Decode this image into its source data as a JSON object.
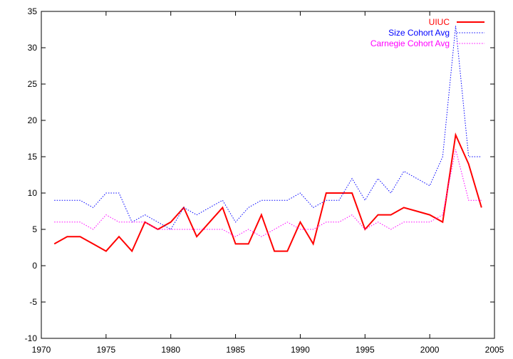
{
  "chart_data": {
    "type": "line",
    "title": "",
    "xlabel": "",
    "ylabel": "",
    "xlim": [
      1970,
      2005
    ],
    "ylim": [
      -10,
      35
    ],
    "x_ticks": [
      1970,
      1975,
      1980,
      1985,
      1990,
      1995,
      2000,
      2005
    ],
    "y_ticks": [
      -10,
      -5,
      0,
      5,
      10,
      15,
      20,
      25,
      30,
      35
    ],
    "grid": false,
    "legend_position": "top-right",
    "series": [
      {
        "name": "UIUC",
        "color": "#ff0000",
        "style": "solid",
        "x": [
          1971,
          1972,
          1973,
          1974,
          1975,
          1976,
          1977,
          1978,
          1979,
          1980,
          1981,
          1982,
          1983,
          1984,
          1985,
          1986,
          1987,
          1988,
          1989,
          1990,
          1991,
          1992,
          1993,
          1994,
          1995,
          1996,
          1997,
          1998,
          1999,
          2000,
          2001,
          2002,
          2003,
          2004
        ],
        "y": [
          3,
          4,
          4,
          3,
          2,
          4,
          2,
          6,
          5,
          6,
          8,
          4,
          6,
          8,
          3,
          3,
          7,
          2,
          2,
          6,
          3,
          10,
          10,
          10,
          5,
          7,
          7,
          8,
          7.5,
          7,
          6,
          18,
          14,
          8
        ]
      },
      {
        "name": "Size Cohort Avg",
        "color": "#0000ff",
        "style": "dotted",
        "x": [
          1971,
          1972,
          1973,
          1974,
          1975,
          1976,
          1977,
          1978,
          1979,
          1980,
          1981,
          1982,
          1983,
          1984,
          1985,
          1986,
          1987,
          1988,
          1989,
          1990,
          1991,
          1992,
          1993,
          1994,
          1995,
          1996,
          1997,
          1998,
          1999,
          2000,
          2001,
          2002,
          2003,
          2004
        ],
        "y": [
          9,
          9,
          9,
          8,
          10,
          10,
          6,
          7,
          6,
          5,
          8,
          7,
          8,
          9,
          6,
          8,
          9,
          9,
          9,
          10,
          8,
          9,
          9,
          12,
          9,
          12,
          10,
          13,
          12,
          11,
          15,
          33,
          15,
          15
        ]
      },
      {
        "name": "Carnegie Cohort Avg",
        "color": "#ff00ff",
        "style": "dotted",
        "x": [
          1971,
          1972,
          1973,
          1974,
          1975,
          1976,
          1977,
          1978,
          1979,
          1980,
          1981,
          1982,
          1983,
          1984,
          1985,
          1986,
          1987,
          1988,
          1989,
          1990,
          1991,
          1992,
          1993,
          1994,
          1995,
          1996,
          1997,
          1998,
          1999,
          2000,
          2001,
          2002,
          2003,
          2004
        ],
        "y": [
          6,
          6,
          6,
          5,
          7,
          6,
          6,
          6,
          5,
          5,
          5,
          5,
          5,
          5,
          4,
          5,
          4,
          5,
          6,
          5,
          5,
          6,
          6,
          7,
          5,
          6,
          5,
          6,
          6,
          6,
          7,
          16,
          9,
          9
        ]
      }
    ]
  }
}
